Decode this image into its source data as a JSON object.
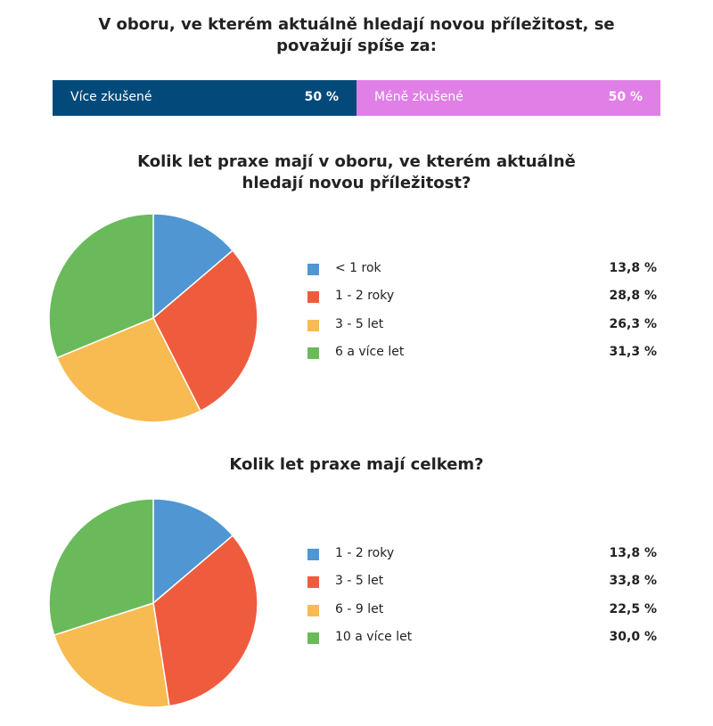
{
  "chart_data": [
    {
      "type": "bar",
      "stacked": true,
      "orientation": "horizontal",
      "title": "V oboru, ve kterém aktuálně hledají novou příležitost, se považují spíše za:",
      "series": [
        {
          "name": "Více zkušené",
          "color": "#034a7a",
          "values": [
            50
          ],
          "value_labels": [
            "50 %"
          ]
        },
        {
          "name": "Méně zkušené",
          "color": "#e07fe6",
          "values": [
            50
          ],
          "value_labels": [
            "50 %"
          ]
        }
      ]
    },
    {
      "type": "pie",
      "title": "Kolik let praxe mají v oboru, ve kterém aktuálně hledají novou příležitost?",
      "categories": [
        "< 1 rok",
        "1 - 2 roky",
        "3 - 5 let",
        "6 a více let"
      ],
      "values": [
        13.8,
        28.8,
        26.3,
        31.3
      ],
      "value_labels": [
        "13,8 %",
        "28,8 %",
        "26,3 %",
        "31,3 %"
      ],
      "colors": [
        "#4f96d3",
        "#ef5c3d",
        "#f7bb52",
        "#6aba5b"
      ]
    },
    {
      "type": "pie",
      "title": "Kolik let praxe mají celkem?",
      "categories": [
        "1 - 2 roky",
        "3 - 5 let",
        "6 - 9 let",
        "10 a více let"
      ],
      "values": [
        13.8,
        33.8,
        22.5,
        30.0
      ],
      "value_labels": [
        "13,8 %",
        "33,8 %",
        "22,5 %",
        "30,0 %"
      ],
      "colors": [
        "#4f96d3",
        "#ef5c3d",
        "#f7bb52",
        "#6aba5b"
      ]
    }
  ]
}
